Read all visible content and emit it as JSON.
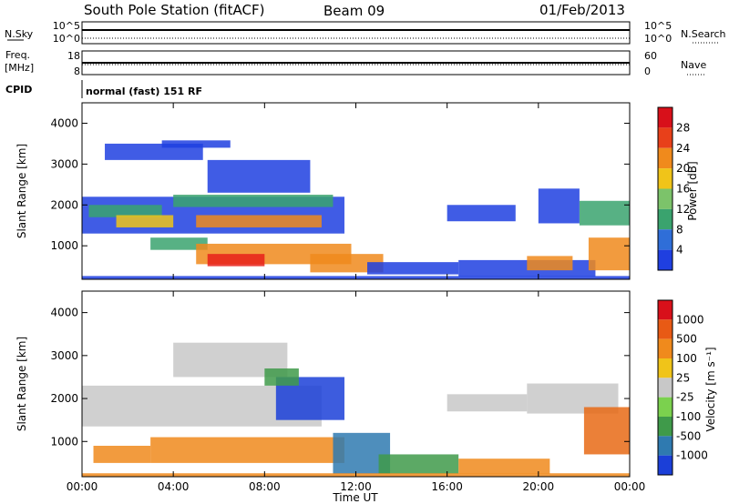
{
  "header": {
    "station": "South Pole Station (fitACF)",
    "beam": "Beam 09",
    "date": "01/Feb/2013"
  },
  "strips": {
    "nsky_label": "N.Sky",
    "nsearch_label": "N.Search",
    "noise_left_ticks": [
      "10^5",
      "10^0"
    ],
    "noise_right_ticks": [
      "10^5",
      "10^0"
    ],
    "freq_label_1": "Freq.",
    "freq_label_2": "[MHz]",
    "freq_ticks": [
      "18",
      "8"
    ],
    "nave_label": "Nave",
    "nave_ticks": [
      "60",
      "0"
    ],
    "cpid_label": "CPID",
    "cpid_value": "normal (fast) 151 RF"
  },
  "chart_data": [
    {
      "type": "heatmap",
      "name": "power",
      "ylabel": "Slant Range [km]",
      "yticks": [
        "1000",
        "2000",
        "3000",
        "4000"
      ],
      "ylim": [
        180,
        4500
      ],
      "xlim": [
        0,
        24
      ],
      "colorbar_label": "Power [dB]",
      "colorbar_ticks": [
        "4",
        "8",
        "12",
        "16",
        "20",
        "24",
        "28"
      ],
      "colorbar_colors": [
        "#1f3fe0",
        "#2f6ed8",
        "#3aa36e",
        "#7cc36a",
        "#f0c419",
        "#f08a1c",
        "#e8401a",
        "#d8101a"
      ],
      "colors": {
        "blue": "#1f3fe0",
        "green": "#3aa36e",
        "light_green": "#7cc36a",
        "yellow": "#f0c419",
        "orange": "#f08a1c",
        "red": "#e8201a"
      },
      "bands": [
        {
          "x": [
            1.0,
            5.3
          ],
          "y": [
            3100,
            3500
          ],
          "color": "blue"
        },
        {
          "x": [
            3.5,
            6.5
          ],
          "y": [
            3400,
            3580
          ],
          "color": "blue"
        },
        {
          "x": [
            5.5,
            10.0
          ],
          "y": [
            2300,
            3100
          ],
          "color": "blue"
        },
        {
          "x": [
            0.0,
            11.5
          ],
          "y": [
            1300,
            2200
          ],
          "color": "blue"
        },
        {
          "x": [
            0.3,
            3.5
          ],
          "y": [
            1700,
            2000
          ],
          "color": "green"
        },
        {
          "x": [
            1.5,
            4.0
          ],
          "y": [
            1450,
            1750
          ],
          "color": "yellow"
        },
        {
          "x": [
            4.0,
            11.0
          ],
          "y": [
            1950,
            2250
          ],
          "color": "green"
        },
        {
          "x": [
            5.0,
            10.5
          ],
          "y": [
            1450,
            1750
          ],
          "color": "orange"
        },
        {
          "x": [
            3.0,
            5.5
          ],
          "y": [
            900,
            1200
          ],
          "color": "green"
        },
        {
          "x": [
            5.0,
            11.8
          ],
          "y": [
            550,
            1050
          ],
          "color": "orange"
        },
        {
          "x": [
            5.5,
            8.0
          ],
          "y": [
            500,
            800
          ],
          "color": "red"
        },
        {
          "x": [
            10.0,
            13.2
          ],
          "y": [
            350,
            800
          ],
          "color": "orange"
        },
        {
          "x": [
            12.5,
            16.5
          ],
          "y": [
            300,
            600
          ],
          "color": "blue"
        },
        {
          "x": [
            16.5,
            22.5
          ],
          "y": [
            250,
            650
          ],
          "color": "blue"
        },
        {
          "x": [
            19.5,
            21.5
          ],
          "y": [
            400,
            750
          ],
          "color": "orange"
        },
        {
          "x": [
            20.0,
            21.8
          ],
          "y": [
            1550,
            2400
          ],
          "color": "blue"
        },
        {
          "x": [
            16.0,
            19.0
          ],
          "y": [
            1600,
            2000
          ],
          "color": "blue"
        },
        {
          "x": [
            21.8,
            24.0
          ],
          "y": [
            1500,
            2100
          ],
          "color": "green"
        },
        {
          "x": [
            22.2,
            24.0
          ],
          "y": [
            400,
            1200
          ],
          "color": "orange"
        },
        {
          "x": [
            0.0,
            24.0
          ],
          "y": [
            180,
            260
          ],
          "color": "blue"
        }
      ]
    },
    {
      "type": "heatmap",
      "name": "velocity",
      "ylabel": "Slant Range [km]",
      "yticks": [
        "1000",
        "2000",
        "3000",
        "4000"
      ],
      "ylim": [
        180,
        4500
      ],
      "xlim": [
        0,
        24
      ],
      "xticks": [
        "00:00",
        "04:00",
        "08:00",
        "12:00",
        "16:00",
        "20:00",
        "00:00"
      ],
      "xlabel": "Time UT",
      "colorbar_label": "Velocity [m s⁻¹]",
      "colorbar_ticks": [
        "1000",
        "500",
        "100",
        "25",
        "-25",
        "-100",
        "-500",
        "-1000"
      ],
      "colorbar_colors": [
        "#1b3fd8",
        "#2f7ab0",
        "#3f9a4a",
        "#7bd14e",
        "#c8c8c8",
        "#f0c419",
        "#f08a1c",
        "#e85a15",
        "#d8101a"
      ],
      "colors": {
        "grey": "#c8c8c8",
        "orange": "#f08a1c",
        "dark_orange": "#e86a15",
        "green": "#3f9a4a",
        "blue": "#1b3fd8",
        "teal": "#2f7ab0"
      },
      "bands": [
        {
          "x": [
            0.0,
            10.5
          ],
          "y": [
            1350,
            2300
          ],
          "color": "grey"
        },
        {
          "x": [
            4.0,
            9.0
          ],
          "y": [
            2500,
            3300
          ],
          "color": "grey"
        },
        {
          "x": [
            8.5,
            11.5
          ],
          "y": [
            1500,
            2500
          ],
          "color": "blue"
        },
        {
          "x": [
            8.0,
            9.5
          ],
          "y": [
            2300,
            2700
          ],
          "color": "green"
        },
        {
          "x": [
            3.0,
            11.5
          ],
          "y": [
            500,
            1100
          ],
          "color": "orange"
        },
        {
          "x": [
            0.5,
            3.0
          ],
          "y": [
            500,
            900
          ],
          "color": "orange"
        },
        {
          "x": [
            11.0,
            13.5
          ],
          "y": [
            250,
            1200
          ],
          "color": "teal"
        },
        {
          "x": [
            13.0,
            16.5
          ],
          "y": [
            250,
            700
          ],
          "color": "green"
        },
        {
          "x": [
            16.5,
            20.5
          ],
          "y": [
            250,
            600
          ],
          "color": "orange"
        },
        {
          "x": [
            16.0,
            19.5
          ],
          "y": [
            1700,
            2100
          ],
          "color": "grey"
        },
        {
          "x": [
            19.5,
            23.5
          ],
          "y": [
            1650,
            2350
          ],
          "color": "grey"
        },
        {
          "x": [
            22.0,
            24.0
          ],
          "y": [
            700,
            1800
          ],
          "color": "dark_orange"
        },
        {
          "x": [
            0.0,
            24.0
          ],
          "y": [
            180,
            260
          ],
          "color": "orange"
        }
      ]
    }
  ]
}
